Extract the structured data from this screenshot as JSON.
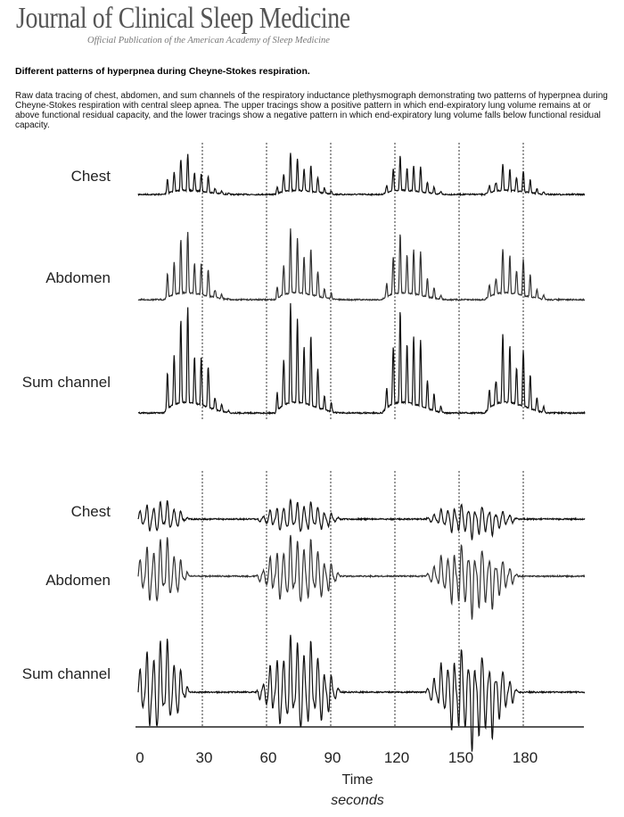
{
  "header": {
    "journal": "Journal of Clinical Sleep Medicine",
    "subtitle": "Official Publication of the American Academy of Sleep Medicine"
  },
  "figure": {
    "title": "Different patterns of hyperpnea during Cheyne-Stokes respiration.",
    "caption": "Raw data tracing of chest, abdomen, and sum channels of the respiratory inductance plethysmograph demonstrating two patterns of hyperpnea during Cheyne-Stokes respiration with central sleep apnea. The upper tracings show a positive pattern in which end-expiratory lung volume remains at or above functional residual capacity, and the lower tracings show a negative pattern in which end-expiratory lung volume falls below functional residual capacity.",
    "panels": [
      {
        "traces": [
          "Chest",
          "Abdomen",
          "Sum channel"
        ]
      },
      {
        "traces": [
          "Chest",
          "Abdomen",
          "Sum channel"
        ]
      }
    ],
    "axis": {
      "ticks": [
        0,
        30,
        60,
        90,
        120,
        150,
        180
      ],
      "label": "Time",
      "unit": "seconds"
    }
  }
}
